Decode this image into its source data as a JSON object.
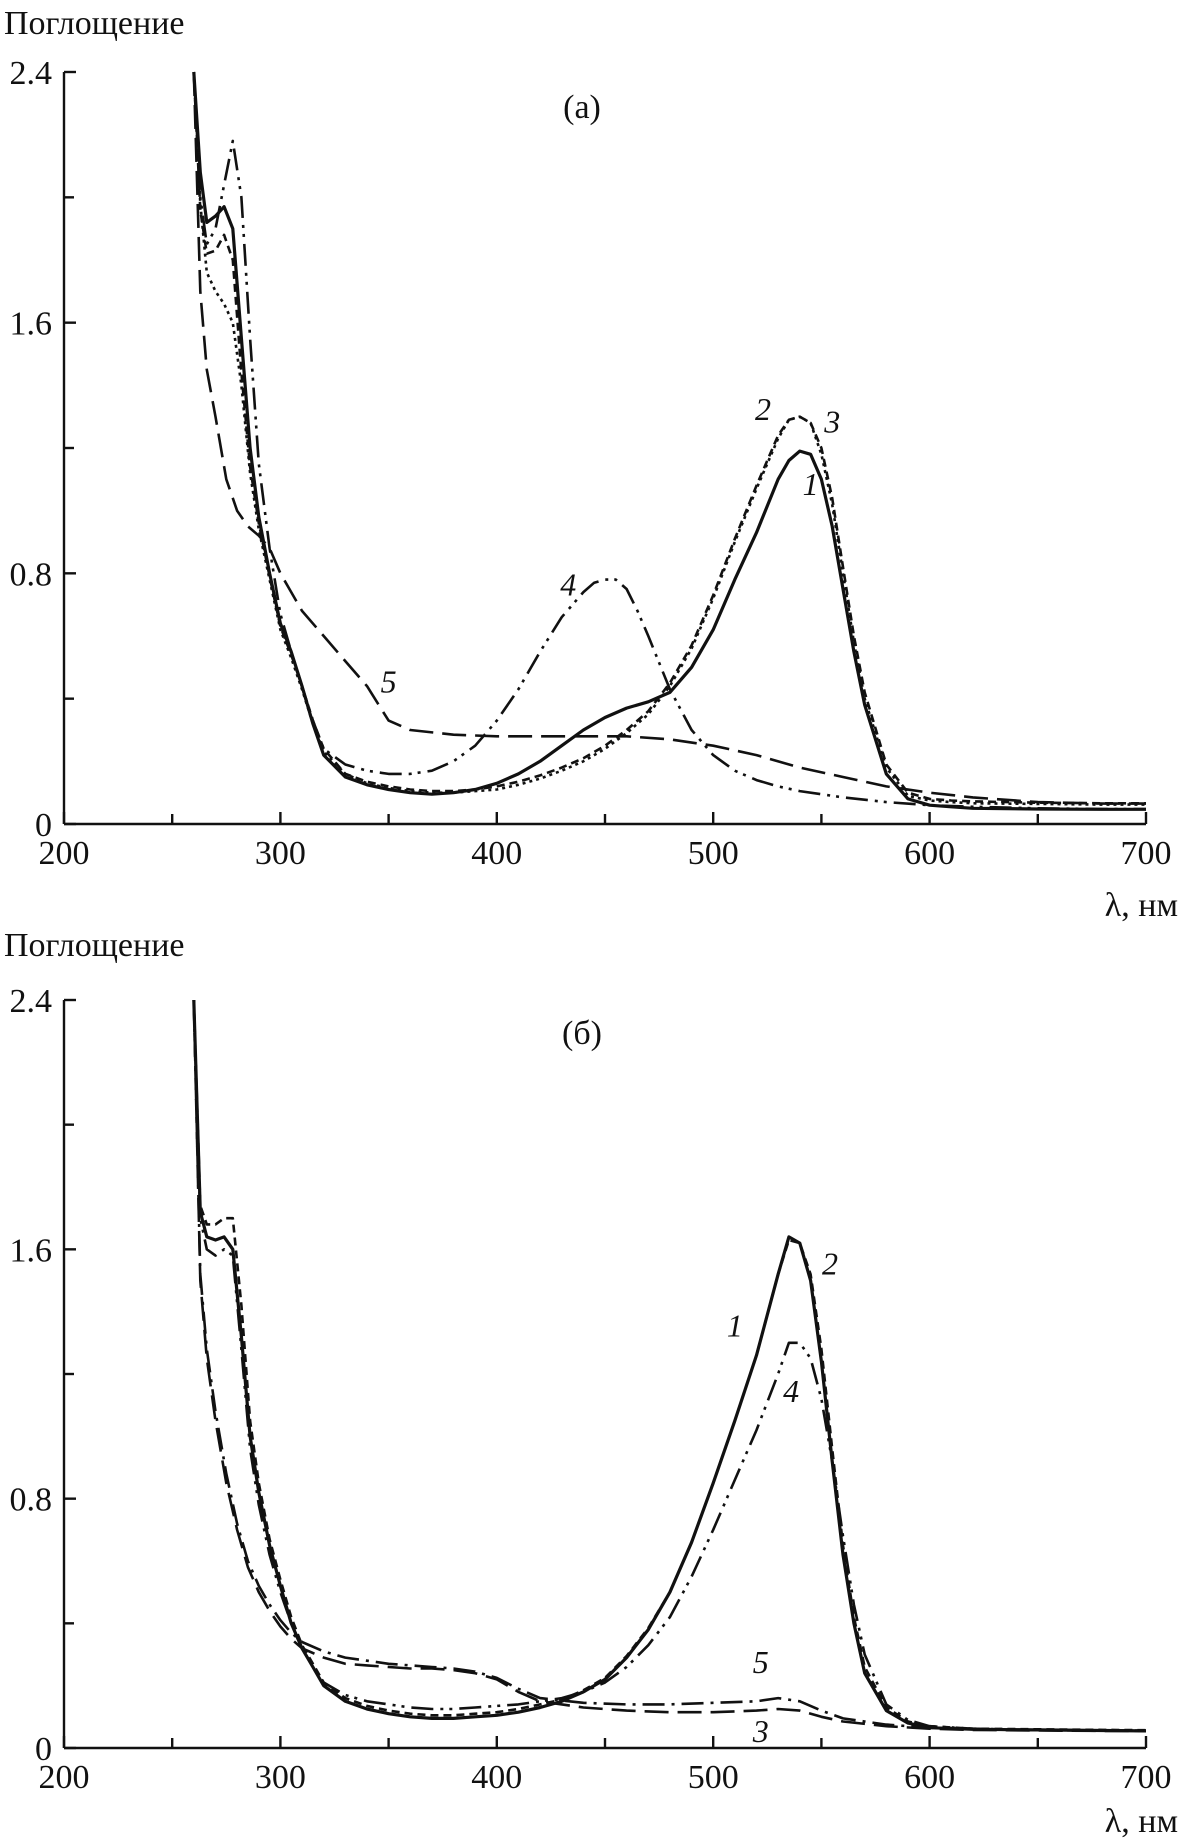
{
  "chart_data": [
    {
      "type": "line",
      "panel_label": "(а)",
      "ylabel": "Поглощение",
      "xlabel": "λ, нм",
      "xlim": [
        200,
        700
      ],
      "ylim": [
        0,
        2.4
      ],
      "x_ticks": [
        200,
        300,
        400,
        500,
        600,
        700
      ],
      "x_minor_ticks": [
        250,
        350,
        450,
        550,
        650
      ],
      "y_ticks": [
        "0",
        "0.8",
        "1.6",
        "2.4"
      ],
      "y_tick_values": [
        0,
        0.8,
        1.6,
        2.4
      ],
      "y_minor_ticks": [
        0.4,
        1.2,
        2.0
      ],
      "series": [
        {
          "name": "1",
          "style": "solid",
          "label_at": [
            545,
            1.05
          ],
          "x": [
            260,
            263,
            266,
            270,
            274,
            278,
            282,
            286,
            290,
            295,
            300,
            305,
            310,
            315,
            320,
            330,
            340,
            350,
            360,
            370,
            380,
            390,
            400,
            410,
            420,
            430,
            440,
            450,
            460,
            470,
            480,
            490,
            500,
            510,
            520,
            530,
            535,
            540,
            545,
            550,
            555,
            560,
            565,
            570,
            580,
            590,
            600,
            610,
            620,
            650,
            680,
            700
          ],
          "y": [
            2.4,
            2.08,
            1.92,
            1.94,
            1.97,
            1.9,
            1.55,
            1.2,
            0.98,
            0.8,
            0.64,
            0.55,
            0.44,
            0.32,
            0.22,
            0.15,
            0.125,
            0.11,
            0.1,
            0.095,
            0.1,
            0.11,
            0.13,
            0.16,
            0.2,
            0.25,
            0.3,
            0.34,
            0.37,
            0.39,
            0.42,
            0.5,
            0.62,
            0.78,
            0.93,
            1.1,
            1.16,
            1.19,
            1.18,
            1.1,
            0.95,
            0.75,
            0.55,
            0.38,
            0.16,
            0.08,
            0.06,
            0.055,
            0.05,
            0.048,
            0.047,
            0.047
          ]
        },
        {
          "name": "2",
          "style": "dotted",
          "label_at": [
            523,
            1.29
          ],
          "x": [
            260,
            263,
            266,
            270,
            274,
            278,
            282,
            286,
            290,
            295,
            300,
            305,
            310,
            315,
            320,
            330,
            340,
            350,
            360,
            370,
            380,
            390,
            400,
            410,
            420,
            430,
            440,
            450,
            460,
            470,
            480,
            490,
            500,
            510,
            520,
            530,
            535,
            540,
            545,
            550,
            555,
            560,
            565,
            570,
            580,
            590,
            600,
            610,
            620,
            650,
            680,
            700
          ],
          "y": [
            2.4,
            1.98,
            1.76,
            1.7,
            1.66,
            1.6,
            1.4,
            1.12,
            0.94,
            0.78,
            0.62,
            0.53,
            0.43,
            0.32,
            0.23,
            0.16,
            0.13,
            0.115,
            0.105,
            0.1,
            0.1,
            0.105,
            0.11,
            0.125,
            0.145,
            0.17,
            0.2,
            0.24,
            0.29,
            0.35,
            0.44,
            0.56,
            0.72,
            0.9,
            1.07,
            1.23,
            1.29,
            1.3,
            1.28,
            1.18,
            1.02,
            0.8,
            0.58,
            0.4,
            0.18,
            0.09,
            0.075,
            0.07,
            0.066,
            0.064,
            0.062,
            0.062
          ]
        },
        {
          "name": "3",
          "style": "dashed",
          "label_at": [
            555,
            1.25
          ],
          "x": [
            260,
            263,
            266,
            270,
            274,
            278,
            282,
            286,
            290,
            295,
            300,
            305,
            310,
            315,
            320,
            330,
            340,
            350,
            360,
            370,
            380,
            390,
            400,
            410,
            420,
            430,
            440,
            450,
            460,
            470,
            480,
            490,
            500,
            510,
            520,
            530,
            535,
            540,
            545,
            550,
            555,
            560,
            565,
            570,
            580,
            590,
            600,
            610,
            620,
            650,
            680,
            700
          ],
          "y": [
            2.4,
            1.96,
            1.82,
            1.83,
            1.88,
            1.8,
            1.44,
            1.14,
            0.96,
            0.79,
            0.63,
            0.54,
            0.44,
            0.33,
            0.24,
            0.16,
            0.135,
            0.12,
            0.11,
            0.105,
            0.105,
            0.11,
            0.12,
            0.135,
            0.155,
            0.18,
            0.21,
            0.25,
            0.3,
            0.36,
            0.45,
            0.57,
            0.73,
            0.91,
            1.08,
            1.24,
            1.29,
            1.3,
            1.28,
            1.2,
            1.04,
            0.82,
            0.6,
            0.42,
            0.19,
            0.1,
            0.08,
            0.075,
            0.072,
            0.068,
            0.066,
            0.066
          ]
        },
        {
          "name": "4",
          "style": "dash-dot-dot",
          "label_at": [
            433,
            0.73
          ],
          "x": [
            260,
            263,
            266,
            270,
            274,
            278,
            282,
            286,
            290,
            295,
            300,
            305,
            310,
            315,
            320,
            330,
            340,
            350,
            360,
            370,
            380,
            390,
            400,
            410,
            420,
            430,
            440,
            445,
            450,
            455,
            460,
            465,
            470,
            480,
            490,
            500,
            510,
            520,
            530,
            540,
            550,
            560,
            580,
            600,
            620,
            650,
            680,
            700
          ],
          "y": [
            2.4,
            2.0,
            1.85,
            1.9,
            2.04,
            2.18,
            2.0,
            1.55,
            1.15,
            0.88,
            0.67,
            0.55,
            0.44,
            0.33,
            0.24,
            0.19,
            0.17,
            0.16,
            0.16,
            0.17,
            0.2,
            0.25,
            0.33,
            0.43,
            0.55,
            0.66,
            0.74,
            0.77,
            0.78,
            0.78,
            0.75,
            0.68,
            0.6,
            0.43,
            0.3,
            0.22,
            0.17,
            0.14,
            0.12,
            0.105,
            0.095,
            0.085,
            0.07,
            0.06,
            0.055,
            0.05,
            0.048,
            0.048
          ]
        },
        {
          "name": "5",
          "style": "long-dash",
          "label_at": [
            350,
            0.42
          ],
          "x": [
            260,
            263,
            266,
            270,
            275,
            280,
            285,
            290,
            295,
            300,
            305,
            310,
            320,
            330,
            340,
            350,
            360,
            380,
            400,
            420,
            440,
            460,
            480,
            500,
            520,
            540,
            560,
            580,
            600,
            620,
            650,
            680,
            700
          ],
          "y": [
            2.4,
            1.7,
            1.45,
            1.3,
            1.1,
            1.0,
            0.95,
            0.92,
            0.88,
            0.8,
            0.74,
            0.68,
            0.6,
            0.52,
            0.44,
            0.33,
            0.3,
            0.285,
            0.28,
            0.28,
            0.28,
            0.28,
            0.27,
            0.25,
            0.22,
            0.18,
            0.15,
            0.12,
            0.1,
            0.085,
            0.07,
            0.065,
            0.065
          ]
        }
      ]
    },
    {
      "type": "line",
      "panel_label": "(б)",
      "ylabel": "Поглощение",
      "xlabel": "λ, нм",
      "xlim": [
        200,
        700
      ],
      "ylim": [
        0,
        2.4
      ],
      "x_ticks": [
        200,
        300,
        400,
        500,
        600,
        700
      ],
      "x_minor_ticks": [
        250,
        350,
        450,
        550,
        650
      ],
      "y_ticks": [
        "0",
        "0.8",
        "1.6",
        "2.4"
      ],
      "y_tick_values": [
        0,
        0.8,
        1.6,
        2.4
      ],
      "y_minor_ticks": [
        0.4,
        1.2,
        2.0
      ],
      "series": [
        {
          "name": "1",
          "style": "solid",
          "label_at": [
            510,
            1.32
          ],
          "x": [
            260,
            263,
            266,
            270,
            274,
            278,
            282,
            286,
            290,
            295,
            300,
            305,
            310,
            315,
            320,
            330,
            340,
            350,
            360,
            370,
            380,
            390,
            400,
            410,
            420,
            430,
            440,
            450,
            460,
            470,
            480,
            490,
            500,
            510,
            520,
            530,
            535,
            540,
            545,
            550,
            555,
            560,
            565,
            570,
            580,
            590,
            600,
            620,
            650,
            680,
            700
          ],
          "y": [
            2.4,
            1.72,
            1.64,
            1.63,
            1.64,
            1.6,
            1.32,
            1.0,
            0.82,
            0.65,
            0.52,
            0.4,
            0.32,
            0.26,
            0.2,
            0.15,
            0.125,
            0.11,
            0.1,
            0.095,
            0.095,
            0.1,
            0.105,
            0.115,
            0.13,
            0.15,
            0.18,
            0.22,
            0.29,
            0.38,
            0.5,
            0.66,
            0.85,
            1.05,
            1.26,
            1.52,
            1.64,
            1.62,
            1.5,
            1.24,
            0.92,
            0.62,
            0.4,
            0.24,
            0.12,
            0.08,
            0.065,
            0.06,
            0.058,
            0.056,
            0.055
          ]
        },
        {
          "name": "2",
          "style": "dashed",
          "label_at": [
            554,
            1.52
          ],
          "x": [
            260,
            263,
            266,
            270,
            274,
            278,
            282,
            286,
            290,
            295,
            300,
            305,
            310,
            315,
            320,
            330,
            340,
            350,
            360,
            370,
            380,
            390,
            400,
            410,
            420,
            430,
            440,
            450,
            460,
            470,
            480,
            490,
            500,
            510,
            520,
            530,
            535,
            540,
            545,
            550,
            555,
            560,
            565,
            570,
            580,
            590,
            600,
            620,
            650,
            680,
            700
          ],
          "y": [
            2.4,
            1.74,
            1.68,
            1.68,
            1.7,
            1.7,
            1.42,
            1.05,
            0.85,
            0.67,
            0.54,
            0.42,
            0.33,
            0.27,
            0.21,
            0.16,
            0.135,
            0.12,
            0.11,
            0.105,
            0.105,
            0.11,
            0.115,
            0.125,
            0.14,
            0.155,
            0.185,
            0.225,
            0.295,
            0.385,
            0.5,
            0.66,
            0.85,
            1.05,
            1.26,
            1.52,
            1.63,
            1.62,
            1.52,
            1.28,
            0.96,
            0.65,
            0.42,
            0.26,
            0.13,
            0.085,
            0.07,
            0.062,
            0.06,
            0.058,
            0.057
          ]
        },
        {
          "name": "3",
          "style": "long-dash",
          "label_at": [
            522,
            0.02
          ],
          "x": [
            260,
            263,
            266,
            270,
            275,
            280,
            285,
            290,
            295,
            300,
            305,
            310,
            320,
            330,
            340,
            350,
            360,
            370,
            380,
            390,
            400,
            410,
            420,
            440,
            460,
            480,
            500,
            520,
            530,
            540,
            550,
            560,
            580,
            600,
            620,
            650,
            680,
            700
          ],
          "y": [
            2.4,
            1.5,
            1.25,
            1.05,
            0.85,
            0.7,
            0.58,
            0.5,
            0.44,
            0.39,
            0.35,
            0.32,
            0.29,
            0.27,
            0.265,
            0.26,
            0.255,
            0.255,
            0.25,
            0.24,
            0.22,
            0.18,
            0.15,
            0.13,
            0.12,
            0.115,
            0.115,
            0.12,
            0.125,
            0.12,
            0.1,
            0.085,
            0.07,
            0.062,
            0.058,
            0.056,
            0.055,
            0.055
          ]
        },
        {
          "name": "4",
          "style": "dash-dot-dot",
          "label_at": [
            536,
            1.11
          ],
          "x": [
            260,
            263,
            266,
            270,
            274,
            278,
            282,
            286,
            290,
            295,
            300,
            305,
            310,
            315,
            320,
            330,
            340,
            350,
            360,
            370,
            380,
            390,
            400,
            410,
            420,
            430,
            440,
            450,
            460,
            470,
            480,
            490,
            500,
            510,
            520,
            530,
            535,
            540,
            545,
            550,
            555,
            560,
            565,
            570,
            580,
            590,
            600,
            620,
            650,
            680,
            700
          ],
          "y": [
            2.4,
            1.7,
            1.6,
            1.58,
            1.6,
            1.58,
            1.28,
            0.96,
            0.78,
            0.62,
            0.5,
            0.4,
            0.32,
            0.26,
            0.21,
            0.17,
            0.15,
            0.14,
            0.13,
            0.125,
            0.125,
            0.13,
            0.135,
            0.14,
            0.15,
            0.16,
            0.18,
            0.21,
            0.26,
            0.33,
            0.42,
            0.55,
            0.7,
            0.86,
            1.02,
            1.2,
            1.3,
            1.3,
            1.25,
            1.12,
            0.92,
            0.68,
            0.46,
            0.3,
            0.14,
            0.09,
            0.07,
            0.062,
            0.058,
            0.056,
            0.055
          ]
        },
        {
          "name": "5",
          "style": "dash-dot",
          "label_at": [
            522,
            0.24
          ],
          "x": [
            260,
            263,
            266,
            270,
            275,
            280,
            285,
            290,
            295,
            300,
            305,
            310,
            320,
            330,
            340,
            350,
            360,
            370,
            380,
            390,
            400,
            410,
            420,
            440,
            460,
            480,
            500,
            520,
            530,
            540,
            550,
            560,
            580,
            600,
            620,
            650,
            680,
            700
          ],
          "y": [
            2.4,
            1.52,
            1.28,
            1.08,
            0.88,
            0.72,
            0.6,
            0.52,
            0.46,
            0.41,
            0.37,
            0.34,
            0.31,
            0.29,
            0.28,
            0.27,
            0.265,
            0.26,
            0.255,
            0.245,
            0.225,
            0.19,
            0.16,
            0.145,
            0.14,
            0.14,
            0.145,
            0.15,
            0.16,
            0.15,
            0.12,
            0.095,
            0.075,
            0.065,
            0.06,
            0.057,
            0.056,
            0.056
          ]
        }
      ]
    }
  ]
}
